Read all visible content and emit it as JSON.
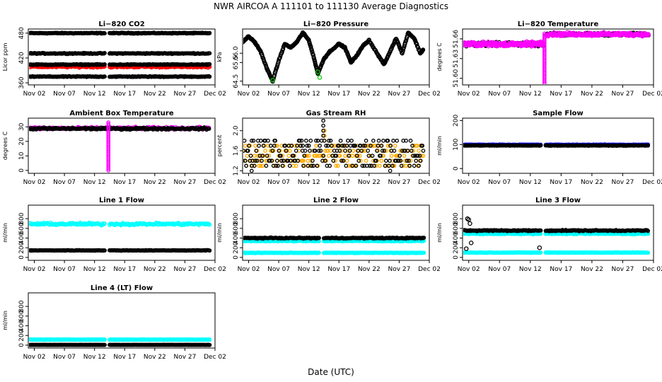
{
  "figure": {
    "title": "NWR   AIRCOA A   111101 to 111130   Average Diagnostics",
    "xlabel": "Date (UTC)"
  },
  "colors": {
    "black": "#000000",
    "red": "#ff0000",
    "green": "#00cc00",
    "magenta": "#ff00ff",
    "orange": "#ffaa00",
    "cyan": "#00ffff",
    "blue": "#0000ff"
  },
  "chart_data": [
    {
      "id": "co2",
      "type": "scatter",
      "title": "Li−820 CO2",
      "ylabel": "Licor ppm",
      "xlim": [
        1,
        32
      ],
      "x_ticks": [
        2,
        7,
        12,
        17,
        22,
        27,
        32
      ],
      "x_tick_labels": [
        "Nov 02",
        "Nov 07",
        "Nov 12",
        "Nov 17",
        "Nov 22",
        "Nov 27",
        "Dec 02"
      ],
      "ylim": [
        355,
        490
      ],
      "y_ticks": [
        360,
        420,
        480
      ],
      "y_tick_labels": [
        "360",
        "420",
        "480"
      ],
      "gap": [
        13.8,
        14.4
      ],
      "series": [
        {
          "name": "level 480",
          "color": "black",
          "base": 480,
          "noise": 1.5,
          "kind": "flat"
        },
        {
          "name": "level 430",
          "color": "black",
          "base": 431,
          "noise": 1.5,
          "kind": "flat"
        },
        {
          "name": "sample red",
          "color": "red",
          "base": 399,
          "noise": 3,
          "kind": "flat"
        },
        {
          "name": "level 405",
          "color": "black",
          "base": 404,
          "noise": 1.5,
          "kind": "flat"
        },
        {
          "name": "level 375",
          "color": "black",
          "base": 375,
          "noise": 1.5,
          "kind": "flat"
        }
      ]
    },
    {
      "id": "pressure",
      "type": "scatter",
      "title": "Li−820 Pressure",
      "ylabel": "kPa",
      "xlim": [
        1,
        32
      ],
      "x_ticks": [
        2,
        7,
        12,
        17,
        22,
        27,
        32
      ],
      "x_tick_labels": [
        "Nov 02",
        "Nov 07",
        "Nov 12",
        "Nov 17",
        "Nov 22",
        "Nov 27",
        "Dec 02"
      ],
      "ylim": [
        64.3,
        67.3
      ],
      "y_ticks": [
        64.5,
        65.5,
        66.0
      ],
      "y_tick_labels": [
        "64.5",
        "65.5",
        "66.0"
      ],
      "series": [
        {
          "name": "pressure",
          "color": "black",
          "kind": "line",
          "points": [
            [
              1,
              66.6
            ],
            [
              2,
              66.9
            ],
            [
              3,
              66.6
            ],
            [
              4,
              66.1
            ],
            [
              5,
              65.2
            ],
            [
              6,
              64.5
            ],
            [
              7,
              65.6
            ],
            [
              8,
              66.5
            ],
            [
              9,
              66.3
            ],
            [
              10,
              66.6
            ],
            [
              11,
              67.1
            ],
            [
              12,
              66.7
            ],
            [
              12.8,
              65.8
            ],
            [
              13.5,
              64.9
            ],
            [
              14.5,
              65.7
            ],
            [
              15.5,
              66.1
            ],
            [
              17,
              66.5
            ],
            [
              18,
              66.3
            ],
            [
              19,
              65.5
            ],
            [
              20,
              65.9
            ],
            [
              21,
              66.4
            ],
            [
              22,
              66.7
            ],
            [
              23.5,
              65.9
            ],
            [
              24.5,
              65.4
            ],
            [
              25.5,
              66.1
            ],
            [
              26.5,
              66.8
            ],
            [
              27.5,
              66.0
            ],
            [
              28.5,
              67.1
            ],
            [
              29.5,
              66.8
            ],
            [
              30.5,
              66.0
            ],
            [
              31,
              66.2
            ]
          ]
        },
        {
          "name": "green flags",
          "color": "green",
          "kind": "points",
          "points": [
            [
              6,
              64.55
            ],
            [
              13.5,
              65.0
            ],
            [
              13.8,
              64.7
            ]
          ]
        }
      ]
    },
    {
      "id": "ltemp",
      "type": "scatter",
      "title": "Li−820 Temperature",
      "ylabel": "degrees C",
      "xlim": [
        1,
        32
      ],
      "x_ticks": [
        2,
        7,
        12,
        17,
        22,
        27,
        32
      ],
      "x_tick_labels": [
        "Nov 02",
        "Nov 07",
        "Nov 12",
        "Nov 17",
        "Nov 22",
        "Nov 27",
        "Dec 02"
      ],
      "ylim": [
        51.59,
        51.675
      ],
      "y_ticks": [
        51.6,
        51.63,
        51.66
      ],
      "y_tick_labels": [
        "51.60",
        "51.63",
        "51.66"
      ],
      "series": [
        {
          "name": "temp black early",
          "color": "black",
          "kind": "band",
          "x0": 1,
          "x1": 14.2,
          "base": 51.652,
          "noise": 0.004
        },
        {
          "name": "temp magenta early",
          "color": "magenta",
          "kind": "band",
          "x0": 1,
          "x1": 14.2,
          "base": 51.652,
          "noise": 0.005
        },
        {
          "name": "temp black late",
          "color": "black",
          "kind": "band",
          "x0": 14.6,
          "x1": 31.2,
          "base": 51.667,
          "noise": 0.003
        },
        {
          "name": "temp magenta late",
          "color": "magenta",
          "kind": "band",
          "x0": 14.6,
          "x1": 31.2,
          "base": 51.667,
          "noise": 0.004
        },
        {
          "name": "transition",
          "color": "magenta",
          "kind": "vline",
          "x": 14.3,
          "y0": 51.592,
          "y1": 51.668
        }
      ]
    },
    {
      "id": "ambient",
      "type": "scatter",
      "title": "Ambient Box Temperature",
      "ylabel": "degrees C",
      "xlim": [
        1,
        32
      ],
      "x_ticks": [
        2,
        7,
        12,
        17,
        22,
        27,
        32
      ],
      "x_tick_labels": [
        "Nov 02",
        "Nov 07",
        "Nov 12",
        "Nov 17",
        "Nov 22",
        "Nov 27",
        "Dec 02"
      ],
      "ylim": [
        -2,
        36
      ],
      "y_ticks": [
        0,
        10,
        20,
        30
      ],
      "y_tick_labels": [
        "0",
        "10",
        "20",
        "30"
      ],
      "series": [
        {
          "name": "ambient magenta",
          "color": "magenta",
          "kind": "band",
          "x0": 1,
          "x1": 31,
          "base": 29,
          "noise": 1.2
        },
        {
          "name": "ambient black",
          "color": "black",
          "kind": "band",
          "x0": 1,
          "x1": 31,
          "base": 28.8,
          "noise": 1.0
        },
        {
          "name": "outage",
          "color": "magenta",
          "kind": "vline",
          "x": 14.3,
          "y0": 0,
          "y1": 33
        }
      ]
    },
    {
      "id": "rh",
      "type": "scatter",
      "title": "Gas Stream RH",
      "ylabel": "percent",
      "xlim": [
        1,
        32
      ],
      "x_ticks": [
        2,
        7,
        12,
        17,
        22,
        27,
        32
      ],
      "x_tick_labels": [
        "Nov 02",
        "Nov 07",
        "Nov 12",
        "Nov 17",
        "Nov 22",
        "Nov 27",
        "Dec 02"
      ],
      "ylim": [
        1.15,
        2.25
      ],
      "y_ticks": [
        1.2,
        1.6,
        2.0
      ],
      "y_tick_labels": [
        "1.2",
        "1.6",
        "2.0"
      ],
      "series": [
        {
          "name": "rh orange",
          "color": "orange",
          "kind": "quant",
          "x0": 1,
          "x1": 31,
          "levels": [
            1.3,
            1.4,
            1.5,
            1.6,
            1.7
          ]
        },
        {
          "name": "rh black",
          "color": "black",
          "kind": "quant",
          "x0": 1,
          "x1": 31,
          "levels": [
            1.3,
            1.4,
            1.5,
            1.6,
            1.7,
            1.8
          ]
        }
      ]
    },
    {
      "id": "sample",
      "type": "scatter",
      "title": "Sample Flow",
      "ylabel": "ml/min",
      "xlim": [
        1,
        32
      ],
      "x_ticks": [
        2,
        7,
        12,
        17,
        22,
        27,
        32
      ],
      "x_tick_labels": [
        "Nov 02",
        "Nov 07",
        "Nov 12",
        "Nov 17",
        "Nov 22",
        "Nov 27",
        "Dec 02"
      ],
      "ylim": [
        -20,
        210
      ],
      "y_ticks": [
        0,
        100,
        200
      ],
      "y_tick_labels": [
        "0",
        "100",
        "200"
      ],
      "gap": [
        13.8,
        14.4
      ],
      "series": [
        {
          "name": "sample blue",
          "color": "blue",
          "kind": "flat",
          "base": 99,
          "noise": 1.5
        },
        {
          "name": "sample black",
          "color": "black",
          "kind": "flat",
          "base": 96,
          "noise": 1.5
        }
      ]
    },
    {
      "id": "line1",
      "type": "scatter",
      "title": "Line 1 Flow",
      "ylabel": "ml/min",
      "xlim": [
        1,
        32
      ],
      "x_ticks": [
        2,
        7,
        12,
        17,
        22,
        27,
        32
      ],
      "x_tick_labels": [
        "Nov 02",
        "Nov 07",
        "Nov 12",
        "Nov 17",
        "Nov 22",
        "Nov 27",
        "Dec 02"
      ],
      "ylim": [
        -60,
        1080
      ],
      "y_ticks": [
        0,
        200,
        400,
        600,
        800
      ],
      "y_tick_labels": [
        "0",
        "200",
        "400",
        "600",
        "800"
      ],
      "gap": [
        13.8,
        14.4
      ],
      "series": [
        {
          "name": "line1 cyan",
          "color": "cyan",
          "kind": "flat",
          "base": 690,
          "noise": 35
        },
        {
          "name": "line1 black",
          "color": "black",
          "kind": "flat",
          "base": 145,
          "noise": 8
        }
      ]
    },
    {
      "id": "line2",
      "type": "scatter",
      "title": "Line 2 Flow",
      "ylabel": "ml/min",
      "xlim": [
        1,
        32
      ],
      "x_ticks": [
        2,
        7,
        12,
        17,
        22,
        27,
        32
      ],
      "x_tick_labels": [
        "Nov 02",
        "Nov 07",
        "Nov 12",
        "Nov 17",
        "Nov 22",
        "Nov 27",
        "Dec 02"
      ],
      "ylim": [
        -60,
        1080
      ],
      "y_ticks": [
        0,
        200,
        400,
        600,
        800
      ],
      "y_tick_labels": [
        "0",
        "200",
        "400",
        "600",
        "800"
      ],
      "gap": [
        13.8,
        14.4
      ],
      "series": [
        {
          "name": "line2 cyan high",
          "color": "cyan",
          "kind": "flat",
          "base": 340,
          "noise": 12
        },
        {
          "name": "line2 cyan low",
          "color": "cyan",
          "kind": "flat",
          "base": 95,
          "noise": 8
        },
        {
          "name": "line2 black",
          "color": "black",
          "kind": "flat",
          "base": 400,
          "noise": 14
        }
      ]
    },
    {
      "id": "line3",
      "type": "scatter",
      "title": "Line 3 Flow",
      "ylabel": "ml/min",
      "xlim": [
        1,
        32
      ],
      "x_ticks": [
        2,
        7,
        12,
        17,
        22,
        27,
        32
      ],
      "x_tick_labels": [
        "Nov 02",
        "Nov 07",
        "Nov 12",
        "Nov 17",
        "Nov 22",
        "Nov 27",
        "Dec 02"
      ],
      "ylim": [
        -60,
        1080
      ],
      "y_ticks": [
        0,
        200,
        400,
        600,
        800
      ],
      "y_tick_labels": [
        "0",
        "200",
        "400",
        "600",
        "800"
      ],
      "gap": [
        13.8,
        14.4
      ],
      "series": [
        {
          "name": "line3 cyan high",
          "color": "cyan",
          "kind": "flat",
          "base": 490,
          "noise": 15
        },
        {
          "name": "line3 cyan low",
          "color": "cyan",
          "kind": "flat",
          "base": 100,
          "noise": 8
        },
        {
          "name": "line3 black",
          "color": "black",
          "kind": "flat",
          "base": 555,
          "noise": 18
        },
        {
          "name": "line3 outliers",
          "color": "black",
          "kind": "points",
          "points": [
            [
              1.8,
              800
            ],
            [
              2,
              780
            ],
            [
              1.6,
              180
            ],
            [
              2.4,
              300
            ],
            [
              2.2,
              700
            ],
            [
              13.5,
              200
            ]
          ]
        }
      ]
    },
    {
      "id": "line4",
      "type": "scatter",
      "title": "Line 4 (LT) Flow",
      "ylabel": "ml/min",
      "xlim": [
        1,
        32
      ],
      "x_ticks": [
        2,
        7,
        12,
        17,
        22,
        27,
        32
      ],
      "x_tick_labels": [
        "Nov 02",
        "Nov 07",
        "Nov 12",
        "Nov 17",
        "Nov 22",
        "Nov 27",
        "Dec 02"
      ],
      "ylim": [
        -60,
        1080
      ],
      "y_ticks": [
        0,
        200,
        400,
        600,
        800
      ],
      "y_tick_labels": [
        "0",
        "200",
        "400",
        "600",
        "800"
      ],
      "gap": [
        13.8,
        14.4
      ],
      "series": [
        {
          "name": "line4 cyan",
          "color": "cyan",
          "kind": "flat",
          "base": 115,
          "noise": 6
        },
        {
          "name": "line4 black",
          "color": "black",
          "kind": "flat",
          "base": 5,
          "noise": 3
        }
      ]
    }
  ]
}
